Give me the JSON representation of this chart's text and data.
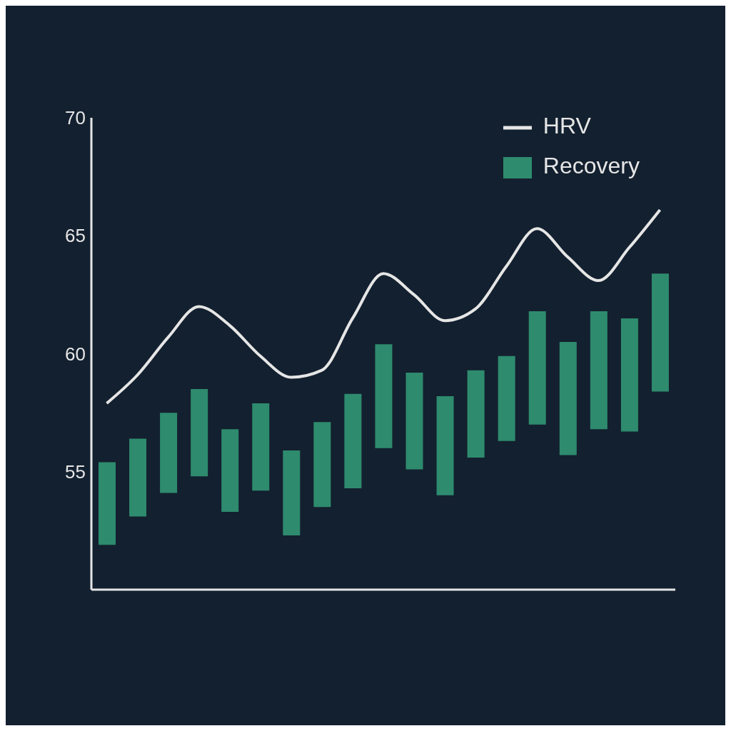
{
  "chart_data": {
    "type": "bar",
    "categories": [
      null,
      null,
      null,
      null,
      null,
      null,
      null,
      null,
      null,
      null,
      null,
      null,
      null,
      null,
      null,
      null,
      null,
      null,
      null
    ],
    "series": [
      {
        "name": "HRV",
        "type": "line",
        "color": "#e6e6e6",
        "values": [
          57.9,
          59.1,
          60.7,
          62.0,
          61.2,
          59.9,
          59.0,
          59.3,
          61.5,
          63.4,
          62.5,
          61.4,
          61.9,
          63.7,
          65.3,
          64.1,
          63.1,
          64.5,
          66.1
        ]
      },
      {
        "name": "Recovery",
        "color": "#2e8b6e",
        "values": [
          3.5,
          3.3,
          3.4,
          3.7,
          3.5,
          3.7,
          3.6,
          3.6,
          4.0,
          4.4,
          4.1,
          4.2,
          3.7,
          3.6,
          4.8,
          4.8,
          5.0,
          4.8,
          5.0
        ],
        "base": [
          51.9,
          53.1,
          54.1,
          54.8,
          53.3,
          54.2,
          52.3,
          53.5,
          54.3,
          56.0,
          55.1,
          54.0,
          55.6,
          56.3,
          57.0,
          55.7,
          56.8,
          56.7,
          58.4
        ]
      }
    ],
    "ylim": [
      50,
      70
    ],
    "yticks": [
      55,
      60,
      65,
      70
    ],
    "tick_labels": "y",
    "legend": "top right",
    "marker": "none",
    "grid": false
  }
}
